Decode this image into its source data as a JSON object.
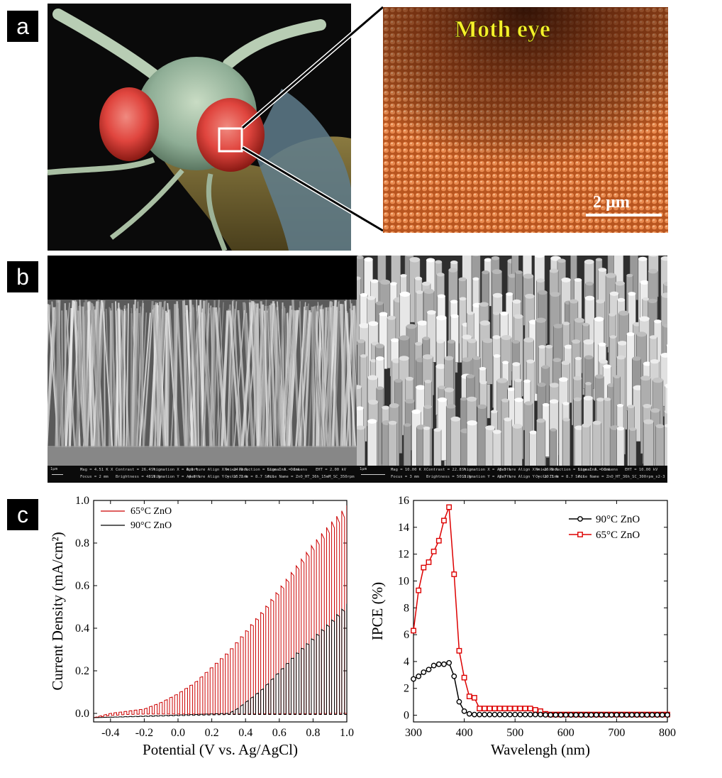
{
  "panels": {
    "a": {
      "label": "a",
      "zoom_title": "Moth eye",
      "scale_label": "2 µm"
    },
    "b": {
      "label": "b",
      "sem_left": {
        "line1": [
          "Mag = 4.51 K X",
          "Contrast = 26.4 %",
          "Stigmation X = 0.9 %",
          "Aperture Align X = -24.9 %",
          "Noise Reduction = Line Int. Done",
          "Signal A = InLens",
          "EHT = 2.00 kV"
        ],
        "line2": [
          "Focus = 2 mm",
          "Brightness = 48.9 %",
          "Stigmation Y = -4.8 %",
          "Aperture Align Y = -15.7 %",
          "Cycle Time = 8.7 Secs",
          "File Name = ZnO_HT_36h_15mM_SC_350rpm"
        ],
        "scale": "1μm"
      },
      "sem_right": {
        "line1": [
          "Mag = 10.00 K X",
          "Contrast = 22.8 %",
          "Stigmation X = -8.5 %",
          "Aperture Align X = -26.9 %",
          "Noise Reduction = Line Int. Done",
          "Signal A = InLens",
          "EHT = 10.00 kV"
        ],
        "line2": [
          "Focus = 3 mm",
          "Brightness = 50.3 %",
          "Stigmation Y = -2.7 %",
          "Aperture Align Y = -20.3 %",
          "Cycle Time = 8.7 Secs",
          "File Name = ZnO_HT_36h_SC_300rpm_s2-3"
        ],
        "scale": "1μm"
      }
    },
    "c": {
      "label": "c"
    }
  },
  "chart_data": [
    {
      "type": "line",
      "xlabel": "Potential (V vs. Ag/AgCl)",
      "ylabel": "Current Density (mA/cm²)",
      "xlim": [
        -0.5,
        1.0
      ],
      "ylim": [
        -0.04,
        1.0
      ],
      "xticks": [
        "-0.4",
        "-0.2",
        "0.0",
        "0.2",
        "0.4",
        "0.6",
        "0.8",
        "1.0"
      ],
      "yticks": [
        "0.0",
        "0.2",
        "0.4",
        "0.6",
        "0.8",
        "1.0"
      ],
      "legend_position": "top-left",
      "chopped_light": true,
      "series": [
        {
          "name": "65°C ZnO",
          "color": "#cc0000",
          "x": [
            -0.5,
            -0.4,
            -0.3,
            -0.2,
            -0.1,
            0.0,
            0.1,
            0.2,
            0.3,
            0.4,
            0.5,
            0.6,
            0.7,
            0.8,
            0.9,
            1.0
          ],
          "y": [
            -0.02,
            0.0,
            0.01,
            0.02,
            0.05,
            0.09,
            0.14,
            0.21,
            0.28,
            0.37,
            0.46,
            0.56,
            0.66,
            0.76,
            0.85,
            0.93
          ],
          "dark_y": [
            -0.02,
            -0.01,
            -0.005,
            -0.003,
            -0.003,
            -0.003,
            -0.003,
            -0.003,
            -0.003,
            -0.003,
            -0.002,
            -0.002,
            -0.002,
            -0.002,
            0.0,
            0.0
          ]
        },
        {
          "name": "90°C ZnO",
          "color": "#000000",
          "x": [
            -0.5,
            0.3,
            0.35,
            0.4,
            0.5,
            0.6,
            0.7,
            0.8,
            0.9,
            1.0
          ],
          "y": [
            -0.02,
            0.0,
            0.02,
            0.05,
            0.11,
            0.19,
            0.27,
            0.34,
            0.41,
            0.49
          ],
          "dark_y": [
            -0.02,
            -0.005,
            -0.005,
            -0.005,
            -0.005,
            -0.005,
            -0.005,
            -0.005,
            -0.005,
            -0.005
          ]
        }
      ]
    },
    {
      "type": "line",
      "xlabel": "Wavelengh (nm)",
      "ylabel": "IPCE (%)",
      "xlim": [
        300,
        800
      ],
      "ylim": [
        -0.5,
        16
      ],
      "xticks": [
        "300",
        "400",
        "500",
        "600",
        "700",
        "800"
      ],
      "yticks": [
        "0",
        "2",
        "4",
        "6",
        "8",
        "10",
        "12",
        "14",
        "16"
      ],
      "legend_position": "top-right",
      "series": [
        {
          "name": "90°C ZnO",
          "color": "#000000",
          "marker": "circle",
          "x": [
            300,
            310,
            320,
            330,
            340,
            350,
            360,
            370,
            380,
            390,
            400,
            410,
            420,
            430,
            440,
            450,
            460,
            470,
            480,
            490,
            500,
            510,
            520,
            530,
            540,
            550,
            560,
            570,
            580,
            590,
            600,
            610,
            620,
            630,
            640,
            650,
            660,
            670,
            680,
            690,
            700,
            710,
            720,
            730,
            740,
            750,
            760,
            770,
            780,
            790,
            800
          ],
          "y": [
            2.7,
            2.9,
            3.2,
            3.4,
            3.7,
            3.8,
            3.8,
            3.9,
            2.9,
            1.0,
            0.3,
            0.1,
            0.05,
            0.05,
            0.05,
            0.05,
            0.05,
            0.05,
            0.05,
            0.05,
            0.05,
            0.05,
            0.05,
            0.05,
            0.05,
            0.05,
            0.03,
            0.02,
            0.02,
            0.02,
            0.02,
            0.02,
            0.02,
            0.02,
            0.02,
            0.02,
            0.02,
            0.02,
            0.02,
            0.02,
            0.02,
            0.02,
            0.02,
            0.02,
            0.02,
            0.02,
            0.02,
            0.02,
            0.02,
            0.02,
            0.02
          ]
        },
        {
          "name": "65°C ZnO",
          "color": "#dd0000",
          "marker": "square",
          "x": [
            300,
            310,
            320,
            330,
            340,
            350,
            360,
            370,
            380,
            390,
            400,
            410,
            420,
            430,
            440,
            450,
            460,
            470,
            480,
            490,
            500,
            510,
            520,
            530,
            540,
            550,
            560,
            570,
            580,
            590,
            600,
            610,
            620,
            630,
            640,
            650,
            660,
            670,
            680,
            690,
            700,
            710,
            720,
            730,
            740,
            750,
            760,
            770,
            780,
            790,
            800
          ],
          "y": [
            6.3,
            9.3,
            11.0,
            11.4,
            12.2,
            13.0,
            14.5,
            15.5,
            10.5,
            4.8,
            2.8,
            1.4,
            1.3,
            0.5,
            0.5,
            0.5,
            0.5,
            0.5,
            0.5,
            0.5,
            0.5,
            0.5,
            0.5,
            0.5,
            0.4,
            0.3,
            0.1,
            0.05,
            0.05,
            0.05,
            0.05,
            0.05,
            0.05,
            0.05,
            0.05,
            0.05,
            0.05,
            0.05,
            0.05,
            0.05,
            0.05,
            0.05,
            0.05,
            0.05,
            0.05,
            0.05,
            0.05,
            0.05,
            0.05,
            0.05,
            0.05
          ]
        }
      ]
    }
  ]
}
